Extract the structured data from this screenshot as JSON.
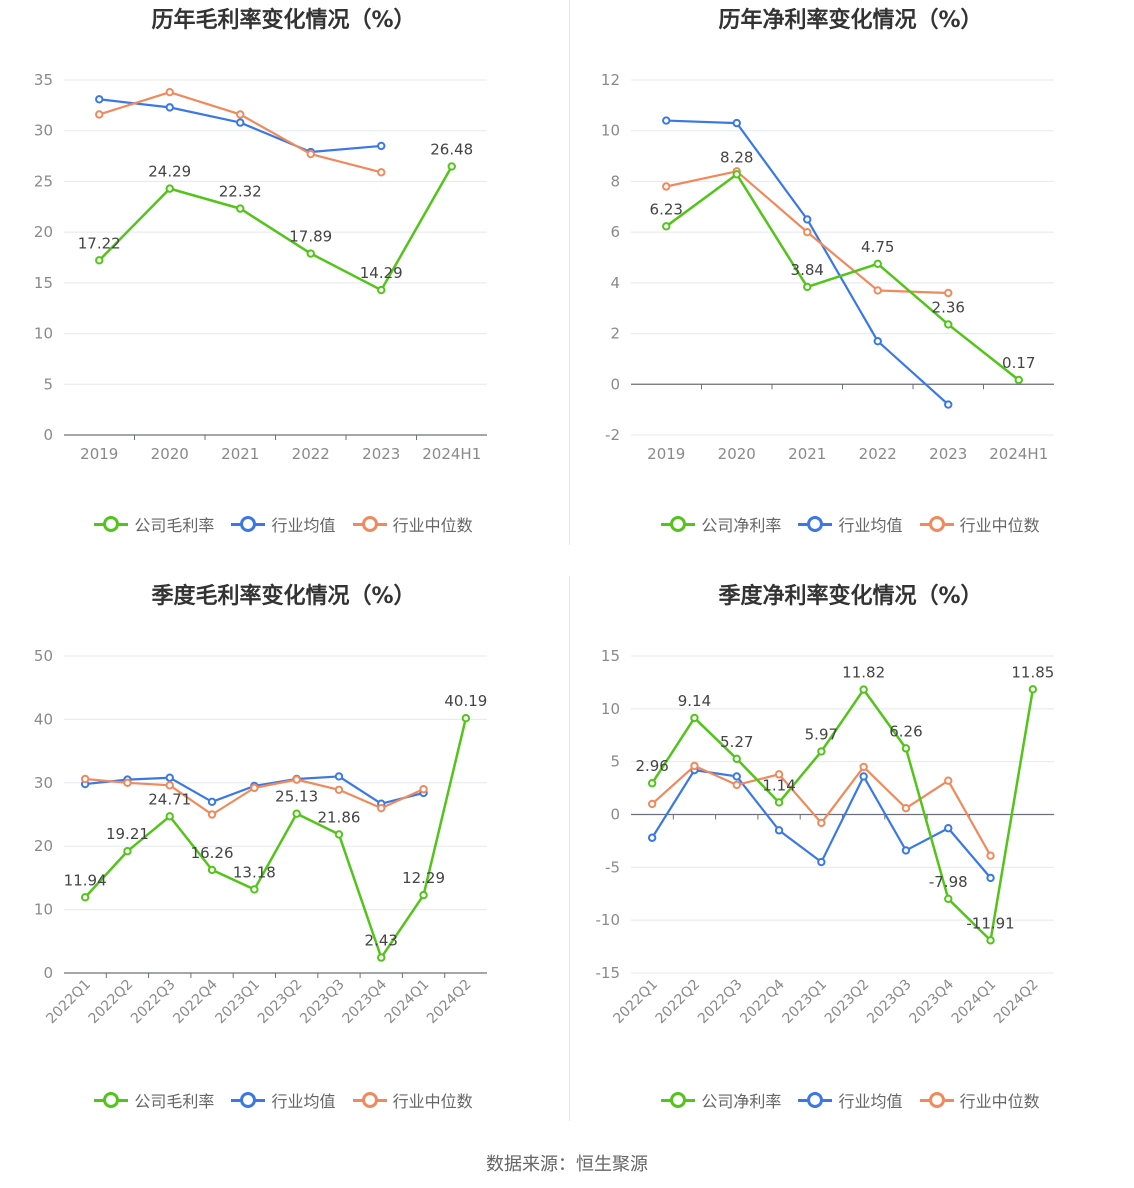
{
  "source": "数据来源：恒生聚源",
  "legend_colors": {
    "company": "#52c41a",
    "avg": "#3a78e6",
    "median": "#f08a5d"
  },
  "chart_data": [
    {
      "title": "历年毛利率变化情况（%）",
      "type": "line",
      "categories": [
        "2019",
        "2020",
        "2021",
        "2022",
        "2023",
        "2024H1"
      ],
      "ylim": [
        0,
        35
      ],
      "yticks": [
        0,
        5,
        10,
        15,
        20,
        25,
        30,
        35
      ],
      "legend": [
        "公司毛利率",
        "行业均值",
        "行业中位数"
      ],
      "series": [
        {
          "name": "公司毛利率",
          "values": [
            17.22,
            24.29,
            22.32,
            17.89,
            14.29,
            26.48
          ],
          "labels": [
            "17.22",
            "24.29",
            "22.32",
            "17.89",
            "14.29",
            "26.48"
          ]
        },
        {
          "name": "行业均值",
          "values": [
            33.1,
            32.3,
            30.8,
            27.9,
            28.5,
            null
          ]
        },
        {
          "name": "行业中位数",
          "values": [
            31.6,
            33.8,
            31.6,
            27.7,
            25.9,
            null
          ]
        }
      ]
    },
    {
      "title": "历年净利率变化情况（%）",
      "type": "line",
      "categories": [
        "2019",
        "2020",
        "2021",
        "2022",
        "2023",
        "2024H1"
      ],
      "ylim": [
        -2,
        12
      ],
      "yticks": [
        -2,
        0,
        2,
        4,
        6,
        8,
        10,
        12
      ],
      "legend": [
        "公司净利率",
        "行业均值",
        "行业中位数"
      ],
      "series": [
        {
          "name": "公司净利率",
          "values": [
            6.23,
            8.28,
            3.84,
            4.75,
            2.36,
            0.17
          ],
          "labels": [
            "6.23",
            "8.28",
            "3.84",
            "4.75",
            "2.36",
            "0.17"
          ]
        },
        {
          "name": "行业均值",
          "values": [
            10.4,
            10.3,
            6.5,
            1.7,
            -0.8,
            null
          ]
        },
        {
          "name": "行业中位数",
          "values": [
            7.8,
            8.4,
            6.0,
            3.7,
            3.6,
            null
          ]
        }
      ]
    },
    {
      "title": "季度毛利率变化情况（%）",
      "type": "line",
      "categories": [
        "2022Q1",
        "2022Q2",
        "2022Q3",
        "2022Q4",
        "2023Q1",
        "2023Q2",
        "2023Q3",
        "2023Q4",
        "2024Q1",
        "2024Q2"
      ],
      "ylim": [
        0,
        50
      ],
      "yticks": [
        0,
        10,
        20,
        30,
        40,
        50
      ],
      "legend": [
        "公司毛利率",
        "行业均值",
        "行业中位数"
      ],
      "series": [
        {
          "name": "公司毛利率",
          "values": [
            11.94,
            19.21,
            24.71,
            16.26,
            13.18,
            25.13,
            21.86,
            2.43,
            12.29,
            40.19
          ],
          "labels": [
            "11.94",
            "19.21",
            "24.71",
            "16.26",
            "13.18",
            "25.13",
            "21.86",
            "2.43",
            "12.29",
            "40.19"
          ]
        },
        {
          "name": "行业均值",
          "values": [
            29.8,
            30.5,
            30.8,
            27.0,
            29.5,
            30.6,
            31.0,
            26.7,
            28.4,
            null
          ]
        },
        {
          "name": "行业中位数",
          "values": [
            30.6,
            30.0,
            29.6,
            25.0,
            29.2,
            30.5,
            28.9,
            26.0,
            29.0,
            null
          ]
        }
      ]
    },
    {
      "title": "季度净利率变化情况（%）",
      "type": "line",
      "categories": [
        "2022Q1",
        "2022Q2",
        "2022Q3",
        "2022Q4",
        "2023Q1",
        "2023Q2",
        "2023Q3",
        "2023Q4",
        "2024Q1",
        "2024Q2"
      ],
      "ylim": [
        -15,
        15
      ],
      "yticks": [
        -15,
        -10,
        -5,
        0,
        5,
        10,
        15
      ],
      "legend": [
        "公司净利率",
        "行业均值",
        "行业中位数"
      ],
      "series": [
        {
          "name": "公司净利率",
          "values": [
            2.96,
            9.14,
            5.27,
            1.14,
            5.97,
            11.82,
            6.26,
            -7.98,
            -11.91,
            11.85
          ],
          "labels": [
            "2.96",
            "9.14",
            "5.27",
            "1.14",
            "5.97",
            "11.82",
            "6.26",
            "-7.98",
            "-11.91",
            "11.85"
          ]
        },
        {
          "name": "行业均值",
          "values": [
            -2.2,
            4.2,
            3.6,
            -1.5,
            -4.5,
            3.6,
            -3.4,
            -1.3,
            -6.0,
            null
          ]
        },
        {
          "name": "行业中位数",
          "values": [
            1.0,
            4.6,
            2.8,
            3.8,
            -0.8,
            4.5,
            0.6,
            3.2,
            -3.9,
            null
          ]
        }
      ]
    }
  ]
}
